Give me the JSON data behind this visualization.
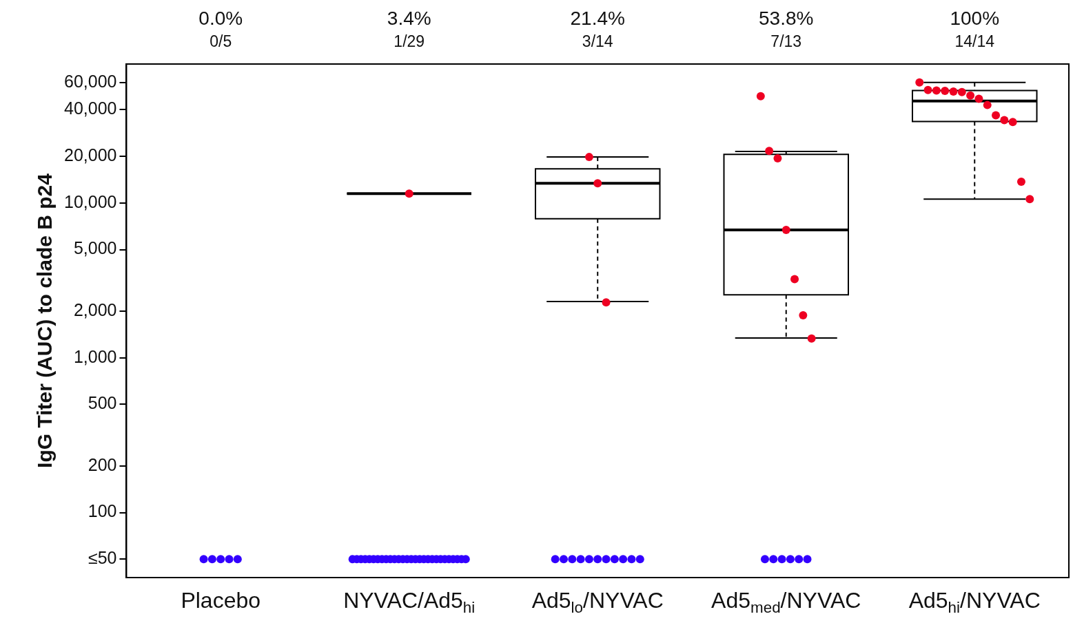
{
  "chart_data": {
    "type": "box",
    "ylabel": "IgG Titer (AUC) to clade B p24",
    "categories": [
      "Placebo",
      "NYVAC/Ad5$_{hi}$",
      "Ad5$_{lo}$/NYVAC",
      "Ad5$_{med}$/NYVAC",
      "Ad5$_{hi}$/NYVAC"
    ],
    "log": "y",
    "ylim": [
      38,
      79000
    ],
    "yticks": [
      {
        "value": 50,
        "label": "≤50"
      },
      100,
      200,
      500,
      {
        "value": 1000,
        "label": "1,000"
      },
      {
        "value": 2000,
        "label": "2,000"
      },
      {
        "value": 5000,
        "label": "5,000"
      },
      {
        "value": 10000,
        "label": "10,000"
      },
      {
        "value": 20000,
        "label": "20,000"
      },
      {
        "value": 40000,
        "label": "40,000"
      },
      {
        "value": 60000,
        "label": "60,000"
      }
    ],
    "grid": false,
    "marker": "circle",
    "boxes": [
      null,
      {
        "low": 11500,
        "q1": 11500,
        "median": 11500,
        "q3": 11500,
        "high": 11500
      },
      {
        "low": 2310,
        "q1": 7900,
        "median": 13400,
        "q3": 16600,
        "high": 19800
      },
      {
        "low": 1340,
        "q1": 2550,
        "median": 6700,
        "q3": 20600,
        "high": 21500
      },
      {
        "low": 10600,
        "q1": 33600,
        "median": 45600,
        "q3": 53200,
        "high": 60000
      }
    ],
    "series": [
      {
        "type": "scatter",
        "color": "#ee0022",
        "x": [
          "NYVAC/Ad5$_{hi}$",
          "Ad5$_{lo}$/NYVAC",
          "Ad5$_{lo}$/NYVAC",
          "Ad5$_{lo}$/NYVAC",
          "Ad5$_{med}$/NYVAC",
          "Ad5$_{med}$/NYVAC",
          "Ad5$_{med}$/NYVAC",
          "Ad5$_{med}$/NYVAC",
          "Ad5$_{med}$/NYVAC",
          "Ad5$_{med}$/NYVAC",
          "Ad5$_{med}$/NYVAC",
          "Ad5$_{hi}$/NYVAC",
          "Ad5$_{hi}$/NYVAC",
          "Ad5$_{hi}$/NYVAC",
          "Ad5$_{hi}$/NYVAC",
          "Ad5$_{hi}$/NYVAC",
          "Ad5$_{hi}$/NYVAC",
          "Ad5$_{hi}$/NYVAC",
          "Ad5$_{hi}$/NYVAC",
          "Ad5$_{hi}$/NYVAC",
          "Ad5$_{hi}$/NYVAC",
          "Ad5$_{hi}$/NYVAC",
          "Ad5$_{hi}$/NYVAC",
          "Ad5$_{hi}$/NYVAC",
          "Ad5$_{hi}$/NYVAC"
        ],
        "values": [
          11500,
          19800,
          13400,
          2280,
          49000,
          21700,
          19400,
          6700,
          3220,
          1880,
          1330,
          60000,
          53700,
          53200,
          53000,
          52500,
          52000,
          49500,
          47100,
          42900,
          36800,
          34300,
          33300,
          13700,
          10600
        ]
      },
      {
        "type": "scatter",
        "color": "#3300ff",
        "x": [
          "Placebo",
          "Placebo",
          "Placebo",
          "Placebo",
          "Placebo",
          "NYVAC/Ad5$_{hi}$",
          "NYVAC/Ad5$_{hi}$",
          "NYVAC/Ad5$_{hi}$",
          "NYVAC/Ad5$_{hi}$",
          "NYVAC/Ad5$_{hi}$",
          "NYVAC/Ad5$_{hi}$",
          "NYVAC/Ad5$_{hi}$",
          "NYVAC/Ad5$_{hi}$",
          "NYVAC/Ad5$_{hi}$",
          "NYVAC/Ad5$_{hi}$",
          "NYVAC/Ad5$_{hi}$",
          "NYVAC/Ad5$_{hi}$",
          "NYVAC/Ad5$_{hi}$",
          "NYVAC/Ad5$_{hi}$",
          "NYVAC/Ad5$_{hi}$",
          "NYVAC/Ad5$_{hi}$",
          "NYVAC/Ad5$_{hi}$",
          "NYVAC/Ad5$_{hi}$",
          "NYVAC/Ad5$_{hi}$",
          "NYVAC/Ad5$_{hi}$",
          "NYVAC/Ad5$_{hi}$",
          "NYVAC/Ad5$_{hi}$",
          "NYVAC/Ad5$_{hi}$",
          "NYVAC/Ad5$_{hi}$",
          "NYVAC/Ad5$_{hi}$",
          "NYVAC/Ad5$_{hi}$",
          "NYVAC/Ad5$_{hi}$",
          "NYVAC/Ad5$_{hi}$",
          "Ad5$_{lo}$/NYVAC",
          "Ad5$_{lo}$/NYVAC",
          "Ad5$_{lo}$/NYVAC",
          "Ad5$_{lo}$/NYVAC",
          "Ad5$_{lo}$/NYVAC",
          "Ad5$_{lo}$/NYVAC",
          "Ad5$_{lo}$/NYVAC",
          "Ad5$_{lo}$/NYVAC",
          "Ad5$_{lo}$/NYVAC",
          "Ad5$_{lo}$/NYVAC",
          "Ad5$_{lo}$/NYVAC",
          "Ad5$_{med}$/NYVAC",
          "Ad5$_{med}$/NYVAC",
          "Ad5$_{med}$/NYVAC",
          "Ad5$_{med}$/NYVAC",
          "Ad5$_{med}$/NYVAC",
          "Ad5$_{med}$/NYVAC"
        ],
        "values": [
          50,
          50,
          50,
          50,
          50,
          50,
          50,
          50,
          50,
          50,
          50,
          50,
          50,
          50,
          50,
          50,
          50,
          50,
          50,
          50,
          50,
          50,
          50,
          50,
          50,
          50,
          50,
          50,
          50,
          50,
          50,
          50,
          50,
          50,
          50,
          50,
          50,
          50,
          50,
          50,
          50,
          50,
          50,
          50,
          50,
          50,
          50,
          50,
          50,
          50
        ]
      }
    ],
    "color": "#000000",
    "annotations": [
      "0.0%",
      "0/5",
      "3.4%",
      "1/29",
      "21.4%",
      "3/14",
      "53.8%",
      "7/13",
      "100%",
      "14/14"
    ]
  }
}
